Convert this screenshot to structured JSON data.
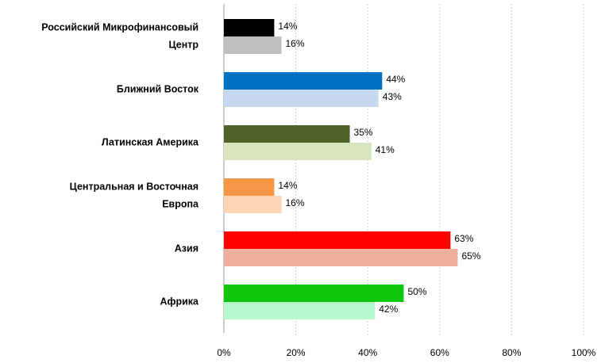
{
  "chart_data": {
    "type": "bar",
    "orientation": "horizontal",
    "categories": [
      [
        "Российский Микрофинансовый",
        "Центр"
      ],
      [
        "Ближний Восток"
      ],
      [
        "Латинская Америка"
      ],
      [
        "Центральная и Восточная",
        "Европа"
      ],
      [
        "Азия"
      ],
      [
        "Африка"
      ]
    ],
    "series": [
      {
        "values": [
          14,
          44,
          35,
          14,
          63,
          50
        ],
        "value_labels": [
          "14%",
          "44%",
          "35%",
          "14%",
          "63%",
          "50%"
        ],
        "colors": [
          "#000000",
          "#0070c0",
          "#4f6228",
          "#f79646",
          "#ff0000",
          "#0cc70c"
        ]
      },
      {
        "values": [
          16,
          43,
          41,
          16,
          65,
          42
        ],
        "value_labels": [
          "16%",
          "43%",
          "41%",
          "16%",
          "65%",
          "42%"
        ],
        "colors": [
          "#bfbfbf",
          "#c6d9f1",
          "#d7e4bd",
          "#fcd5b5",
          "#eeb09e",
          "#b6f8cc"
        ]
      }
    ],
    "xlim": [
      0,
      100
    ],
    "xticks": [
      {
        "value": 0,
        "label": "0%"
      },
      {
        "value": 20,
        "label": "20%"
      },
      {
        "value": 40,
        "label": "40%"
      },
      {
        "value": 60,
        "label": "60%"
      },
      {
        "value": 80,
        "label": "80%"
      },
      {
        "value": 100,
        "label": "100%"
      }
    ],
    "grid": true
  }
}
